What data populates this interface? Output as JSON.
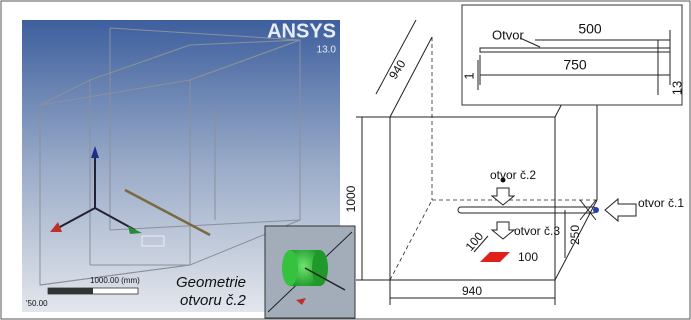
{
  "viewport": {
    "logo": "ANSYS",
    "version": "13.0",
    "scale_label": "1000.00 (mm)",
    "scale_start": "'50.00"
  },
  "inset_caption": {
    "line1": "Geometrie",
    "line2": "otvoru č.2"
  },
  "drawing": {
    "depth_dim": "940",
    "height_dim": "1000",
    "width_dim": "940",
    "hole_2": "otvor č.2",
    "hole_1": "otvor č.1",
    "hole_3": "otvor č.3",
    "hole_3_depth": "100",
    "hole_3_width": "100",
    "hole_height": "250"
  },
  "detail": {
    "label": "Otvor",
    "inner_length": "500",
    "outer_length": "750",
    "left_dim": "1",
    "right_dim": "13"
  }
}
